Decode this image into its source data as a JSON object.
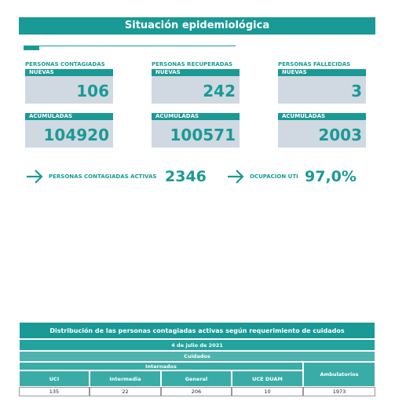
{
  "header": {
    "title": "Situación epidemiológica"
  },
  "cards": [
    {
      "label": "PERSONAS CONTAGIADAS",
      "new_label": "NUEVAS",
      "new_value": 106,
      "total_label": "ACUMULADAS",
      "total_value": 104920
    },
    {
      "label": "PERSONAS RECUPERADAS",
      "new_label": "NUEVAS",
      "new_value": 242,
      "total_label": "ACUMULADAS",
      "total_value": 100571
    },
    {
      "label": "PERSONAS FALLECIDAS",
      "new_label": "NUEVAS",
      "new_value": 3,
      "total_label": "ACUMULADAS",
      "total_value": 2003
    }
  ],
  "indicators": [
    {
      "label": "PERSONAS CONTAGIADAS ACTIVAS",
      "value": 2346
    },
    {
      "label": "OCUPACION UTI",
      "value": "97,0%"
    }
  ],
  "table": {
    "title": "Distribución de las personas contagiadas activas según requerimiento de cuidados",
    "date": "4 de julio de 2021",
    "group": "Cuidados",
    "subgroup": "Internados",
    "columns": [
      "UCI",
      "Intermedia",
      "General",
      "UCE DUAM",
      "Ambulatorios"
    ],
    "rows": [
      [
        135,
        22,
        206,
        10,
        1973
      ]
    ]
  }
}
